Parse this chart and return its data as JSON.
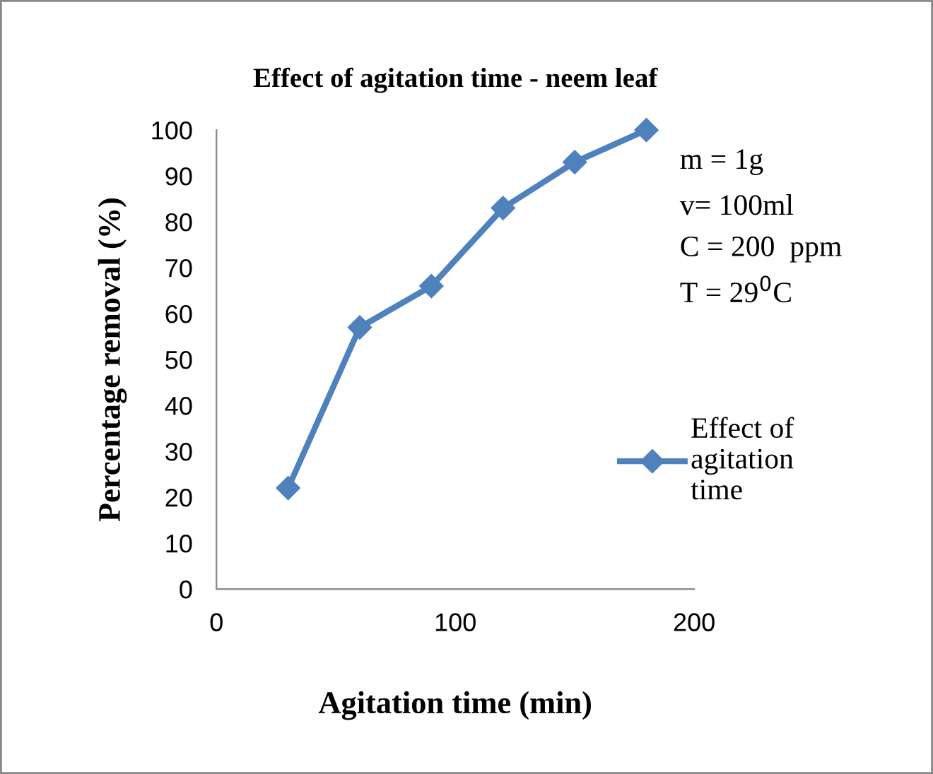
{
  "chart_data": {
    "type": "line",
    "title": "Effect of agitation time - neem leaf",
    "xlabel": "Agitation time (min)",
    "ylabel": "Percentage removal (%)",
    "x": [
      30,
      60,
      90,
      120,
      150,
      180
    ],
    "series": [
      {
        "name": "Effect of agitation time",
        "color": "#4f81bd",
        "values": [
          22,
          57,
          66,
          83,
          93,
          100
        ]
      }
    ],
    "xlim": [
      0,
      200
    ],
    "xticks": [
      0,
      100,
      200
    ],
    "ylim": [
      0,
      100
    ],
    "yticks": [
      0,
      10,
      20,
      30,
      40,
      50,
      60,
      70,
      80,
      90,
      100
    ],
    "annotations": [
      "m = 1g",
      "v= 100ml",
      "C = 200  ppm",
      "T = 29$^{0}$C"
    ],
    "grid": false,
    "legend": "right",
    "marker": "diamond",
    "line_style": "solid"
  }
}
